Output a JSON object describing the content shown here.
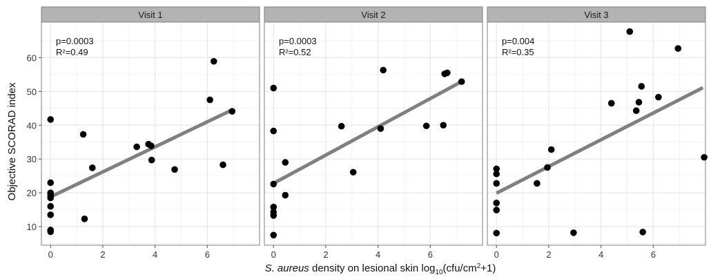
{
  "chart_data": {
    "type": "scatter",
    "ylabel": "Objective SCORAD index",
    "xlabel": {
      "species": "S. aureus",
      "rest": " density on lesional skin  log",
      "sub": "10",
      "unit_pre": "(cfu/cm",
      "sup": "2",
      "unit_post": "+1)"
    },
    "xlim": [
      -0.35,
      8.0
    ],
    "ylim": [
      4.5,
      70.5
    ],
    "x_ticks": [
      0,
      2,
      4,
      6
    ],
    "y_ticks": [
      10,
      20,
      30,
      40,
      50,
      60
    ],
    "grid": true,
    "colors": {
      "panel_bg": "#ffffff",
      "grid_major": "#e6e6e6",
      "grid_minor": "#f2f2f2",
      "panel_border": "#7f7f7f",
      "strip_bg": "#b3b3b3",
      "point": "#000000",
      "fit_line": "#808080"
    },
    "panels": [
      {
        "title": "Visit 1",
        "annotation": {
          "p": "p=0.0003",
          "r2": "R²=0.49"
        },
        "fit": {
          "x": [
            0,
            7.0
          ],
          "y": [
            18.8,
            44.7
          ]
        },
        "points": [
          [
            0,
            41.7
          ],
          [
            0,
            23.0
          ],
          [
            0,
            20.0
          ],
          [
            0,
            19.2
          ],
          [
            0,
            18.5
          ],
          [
            0,
            16.0
          ],
          [
            0,
            13.5
          ],
          [
            0,
            9.0
          ],
          [
            0,
            8.5
          ],
          [
            1.25,
            37.3
          ],
          [
            1.3,
            12.3
          ],
          [
            1.6,
            27.4
          ],
          [
            3.3,
            33.6
          ],
          [
            3.75,
            34.4
          ],
          [
            3.85,
            33.9
          ],
          [
            3.87,
            29.7
          ],
          [
            4.75,
            26.9
          ],
          [
            6.1,
            47.5
          ],
          [
            6.25,
            58.9
          ],
          [
            6.6,
            28.3
          ],
          [
            6.95,
            44.1
          ]
        ]
      },
      {
        "title": "Visit 2",
        "annotation": {
          "p": "p=0.0003",
          "r2": "R²=0.52"
        },
        "fit": {
          "x": [
            0,
            7.2
          ],
          "y": [
            22.8,
            52.9
          ]
        },
        "points": [
          [
            0,
            51.0
          ],
          [
            0,
            38.3
          ],
          [
            0,
            22.6
          ],
          [
            0,
            15.8
          ],
          [
            0,
            14.3
          ],
          [
            0,
            13.3
          ],
          [
            0,
            7.5
          ],
          [
            0.45,
            29.0
          ],
          [
            0.45,
            19.3
          ],
          [
            2.6,
            39.7
          ],
          [
            3.05,
            26.1
          ],
          [
            4.1,
            39.0
          ],
          [
            4.2,
            56.3
          ],
          [
            5.85,
            39.8
          ],
          [
            6.5,
            40.0
          ],
          [
            6.55,
            55.2
          ],
          [
            6.65,
            55.5
          ],
          [
            7.2,
            52.9
          ]
        ]
      },
      {
        "title": "Visit 3",
        "annotation": {
          "p": "p=0.004",
          "r2": "R²=0.35"
        },
        "fit": {
          "x": [
            0,
            7.9
          ],
          "y": [
            19.9,
            51.1
          ]
        },
        "points": [
          [
            0,
            27.1
          ],
          [
            0,
            25.6
          ],
          [
            0,
            22.8
          ],
          [
            0,
            17.0
          ],
          [
            0,
            14.9
          ],
          [
            0,
            8.1
          ],
          [
            1.55,
            22.8
          ],
          [
            1.95,
            27.5
          ],
          [
            2.1,
            32.8
          ],
          [
            2.95,
            8.2
          ],
          [
            4.4,
            46.5
          ],
          [
            5.1,
            67.7
          ],
          [
            5.35,
            44.3
          ],
          [
            5.45,
            46.8
          ],
          [
            5.55,
            51.5
          ],
          [
            5.6,
            8.4
          ],
          [
            6.2,
            48.3
          ],
          [
            6.95,
            62.7
          ],
          [
            7.95,
            30.5
          ]
        ]
      }
    ]
  }
}
